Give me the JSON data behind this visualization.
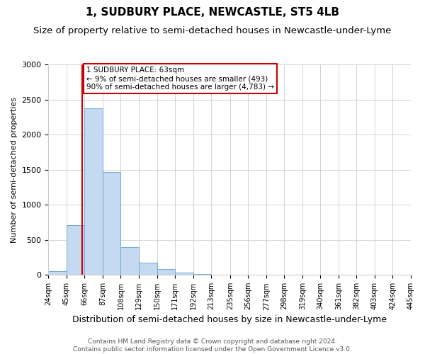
{
  "title": "1, SUDBURY PLACE, NEWCASTLE, ST5 4LB",
  "subtitle": "Size of property relative to semi-detached houses in Newcastle-under-Lyme",
  "xlabel": "Distribution of semi-detached houses by size in Newcastle-under-Lyme",
  "ylabel": "Number of semi-detached properties",
  "footer_lines": [
    "Contains HM Land Registry data © Crown copyright and database right 2024.",
    "Contains public sector information licensed under the Open Government Licence v3.0."
  ],
  "bin_edges": [
    24,
    45,
    66,
    87,
    108,
    129,
    150,
    171,
    192,
    213,
    235,
    256,
    277,
    298,
    319,
    340,
    361,
    382,
    403,
    424,
    445
  ],
  "bar_heights": [
    55,
    710,
    2380,
    1470,
    400,
    180,
    85,
    30,
    15,
    5,
    2,
    1,
    0,
    0,
    0,
    0,
    0,
    0,
    0,
    0
  ],
  "bar_color": "#c5d9f0",
  "bar_edge_color": "#6aabdb",
  "property_value": 63,
  "vline_color": "#cc0000",
  "annotation_text": "1 SUDBURY PLACE: 63sqm\n← 9% of semi-detached houses are smaller (493)\n90% of semi-detached houses are larger (4,783) →",
  "annotation_box_edge_color": "#cc0000",
  "ylim": [
    0,
    3000
  ],
  "yticks": [
    0,
    500,
    1000,
    1500,
    2000,
    2500,
    3000
  ],
  "tick_labels": [
    "24sqm",
    "45sqm",
    "66sqm",
    "87sqm",
    "108sqm",
    "129sqm",
    "150sqm",
    "171sqm",
    "192sqm",
    "213sqm",
    "235sqm",
    "256sqm",
    "277sqm",
    "298sqm",
    "319sqm",
    "340sqm",
    "361sqm",
    "382sqm",
    "403sqm",
    "424sqm",
    "445sqm"
  ],
  "background_color": "#ffffff",
  "grid_color": "#cccccc",
  "title_fontsize": 11,
  "subtitle_fontsize": 9.5,
  "xlabel_fontsize": 9,
  "ylabel_fontsize": 8,
  "footer_fontsize": 6.5
}
